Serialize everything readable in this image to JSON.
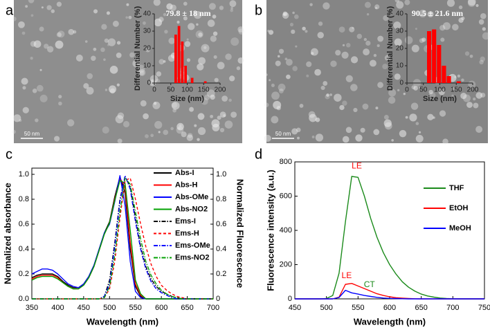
{
  "chart_data": [
    {
      "type": "histogram",
      "panel_label": "a",
      "annotation": "79.8 ± 18 nm",
      "scale_bar": "50 nm",
      "xlabel": "Size (nm)",
      "ylabel": "Differential Number (%)",
      "bins": [
        60,
        70,
        80,
        90,
        100,
        110,
        120,
        130,
        140,
        150,
        160
      ],
      "values": [
        28,
        33,
        24,
        10,
        0,
        3,
        0,
        0,
        0,
        1
      ],
      "color": "#ff0000",
      "xlim": [
        0,
        200
      ],
      "xticks": [
        0,
        50,
        100,
        150,
        200
      ],
      "ylim": [
        0,
        40
      ],
      "yticks": [
        0,
        10,
        20,
        30,
        40
      ]
    },
    {
      "type": "histogram",
      "panel_label": "b",
      "annotation": "90.5 ± 21.6 nm",
      "scale_bar": "50 nm",
      "xlabel": "Size (nm)",
      "ylabel": "Differential Number (%)",
      "bins": [
        60,
        75,
        90,
        105,
        120,
        135,
        150,
        165,
        180
      ],
      "values": [
        30,
        31,
        22,
        10,
        4,
        0,
        1,
        0
      ],
      "color": "#ff0000",
      "xlim": [
        0,
        200
      ],
      "xticks": [
        0,
        50,
        100,
        150,
        200
      ],
      "ylim": [
        0,
        40
      ],
      "yticks": [
        0,
        10,
        20,
        30,
        40
      ]
    },
    {
      "type": "line",
      "panel_label": "c",
      "xlabel": "Wavelength (nm)",
      "ylabel": "Normalized absorbance",
      "y2label": "Normalized Fluorescence",
      "x": [
        350,
        360,
        370,
        380,
        390,
        400,
        410,
        420,
        430,
        440,
        450,
        460,
        470,
        480,
        490,
        500,
        510,
        520,
        530,
        540,
        550,
        560,
        570,
        580,
        590,
        600,
        610,
        620,
        630,
        640,
        650,
        660,
        670,
        680,
        690,
        700
      ],
      "series": [
        {
          "name": "Abs-I",
          "color": "#000000",
          "line_style": "solid",
          "values": [
            0.17,
            0.19,
            0.2,
            0.2,
            0.2,
            0.18,
            0.14,
            0.11,
            0.09,
            0.09,
            0.12,
            0.18,
            0.27,
            0.4,
            0.53,
            0.62,
            0.82,
            0.98,
            0.85,
            0.4,
            0.1,
            0.02,
            0,
            0,
            0,
            0,
            0,
            0,
            0,
            0,
            0,
            0,
            0,
            0,
            0,
            0
          ]
        },
        {
          "name": "Abs-H",
          "color": "#ff0000",
          "line_style": "solid",
          "values": [
            0.16,
            0.18,
            0.19,
            0.19,
            0.19,
            0.17,
            0.13,
            0.1,
            0.08,
            0.08,
            0.11,
            0.17,
            0.26,
            0.39,
            0.52,
            0.61,
            0.8,
            0.97,
            0.9,
            0.45,
            0.12,
            0.03,
            0,
            0,
            0,
            0,
            0,
            0,
            0,
            0,
            0,
            0,
            0,
            0,
            0,
            0
          ]
        },
        {
          "name": "Abs-OMe",
          "color": "#0000ff",
          "line_style": "solid",
          "values": [
            0.2,
            0.22,
            0.24,
            0.24,
            0.23,
            0.2,
            0.16,
            0.12,
            0.1,
            0.09,
            0.12,
            0.18,
            0.27,
            0.4,
            0.53,
            0.6,
            0.78,
            0.99,
            0.75,
            0.3,
            0.06,
            0.01,
            0,
            0,
            0,
            0,
            0,
            0,
            0,
            0,
            0,
            0,
            0,
            0,
            0,
            0
          ]
        },
        {
          "name": "Abs-NO2",
          "color": "#00a000",
          "line_style": "solid",
          "values": [
            0.15,
            0.17,
            0.18,
            0.18,
            0.18,
            0.16,
            0.13,
            0.1,
            0.08,
            0.08,
            0.11,
            0.17,
            0.26,
            0.39,
            0.52,
            0.61,
            0.79,
            0.95,
            0.93,
            0.55,
            0.15,
            0.04,
            0,
            0,
            0,
            0,
            0,
            0,
            0,
            0,
            0,
            0,
            0,
            0,
            0,
            0
          ]
        },
        {
          "name": "Ems-I",
          "color": "#000000",
          "line_style": "dashdot",
          "axis": "y2",
          "values": [
            0,
            0,
            0,
            0,
            0,
            0,
            0,
            0,
            0,
            0,
            0,
            0,
            0,
            0,
            0.02,
            0.15,
            0.45,
            0.8,
            0.98,
            0.9,
            0.65,
            0.42,
            0.26,
            0.16,
            0.1,
            0.06,
            0.04,
            0.02,
            0.01,
            0,
            0,
            0,
            0,
            0,
            0,
            0
          ]
        },
        {
          "name": "Ems-H",
          "color": "#ff0000",
          "line_style": "dash",
          "axis": "y2",
          "values": [
            0,
            0,
            0,
            0,
            0,
            0,
            0,
            0,
            0,
            0,
            0,
            0,
            0,
            0,
            0.01,
            0.08,
            0.3,
            0.65,
            0.95,
            0.97,
            0.8,
            0.6,
            0.42,
            0.28,
            0.18,
            0.11,
            0.07,
            0.04,
            0.02,
            0.01,
            0,
            0,
            0,
            0,
            0,
            0
          ]
        },
        {
          "name": "Ems-OMe",
          "color": "#0000ff",
          "line_style": "dashdot",
          "axis": "y2",
          "values": [
            0,
            0,
            0,
            0,
            0,
            0,
            0,
            0,
            0,
            0,
            0,
            0,
            0,
            0,
            0.02,
            0.12,
            0.42,
            0.78,
            0.99,
            0.88,
            0.62,
            0.4,
            0.24,
            0.14,
            0.08,
            0.05,
            0.03,
            0.01,
            0,
            0,
            0,
            0,
            0,
            0,
            0,
            0
          ]
        },
        {
          "name": "Ems-NO2",
          "color": "#00a000",
          "line_style": "dashdot",
          "axis": "y2",
          "values": [
            0,
            0,
            0,
            0,
            0,
            0,
            0,
            0,
            0,
            0,
            0,
            0,
            0,
            0,
            0.01,
            0.1,
            0.35,
            0.7,
            0.97,
            0.92,
            0.7,
            0.48,
            0.3,
            0.19,
            0.12,
            0.07,
            0.04,
            0.02,
            0.01,
            0,
            0,
            0,
            0,
            0,
            0,
            0
          ]
        }
      ],
      "xlim": [
        350,
        700
      ],
      "xticks": [
        350,
        400,
        450,
        500,
        550,
        600,
        650,
        700
      ],
      "ylim": [
        0,
        1.05
      ],
      "yticks": [
        {
          "value": 0,
          "label": "0.0"
        },
        0.2,
        0.4,
        0.6,
        0.8,
        {
          "value": 1,
          "label": "1.0"
        }
      ],
      "y2lim": [
        0,
        1.05
      ],
      "y2ticks": [
        0,
        0.2,
        0.4,
        0.6,
        0.8,
        {
          "value": 1,
          "label": "1.0"
        }
      ],
      "legend": "upper right"
    },
    {
      "type": "line",
      "panel_label": "d",
      "xlabel": "Wavelength (nm)",
      "ylabel": "Fluorescence intensity (a.u.)",
      "x": [
        450,
        460,
        470,
        480,
        490,
        500,
        510,
        520,
        530,
        540,
        550,
        560,
        570,
        580,
        590,
        600,
        610,
        620,
        630,
        640,
        650,
        660,
        670,
        680,
        690,
        700,
        710,
        720,
        730,
        740,
        750
      ],
      "series": [
        {
          "name": "THF",
          "color": "#1a8a1a",
          "line_style": "solid",
          "values": [
            0,
            0,
            0,
            0,
            0,
            2,
            20,
            150,
            450,
            715,
            710,
            600,
            470,
            360,
            270,
            200,
            145,
            100,
            68,
            45,
            28,
            17,
            10,
            5,
            2,
            1,
            0,
            0,
            0,
            0,
            0
          ]
        },
        {
          "name": "EtOH",
          "color": "#ff0000",
          "line_style": "solid",
          "values": [
            0,
            0,
            0,
            0,
            0,
            0,
            0,
            10,
            85,
            90,
            75,
            60,
            45,
            30,
            20,
            12,
            7,
            4,
            2,
            1,
            0,
            0,
            0,
            0,
            0,
            0,
            0,
            0,
            0,
            0,
            0
          ]
        },
        {
          "name": "MeOH",
          "color": "#0000ff",
          "line_style": "solid",
          "values": [
            0,
            0,
            0,
            0,
            0,
            0,
            0,
            8,
            50,
            35,
            28,
            20,
            14,
            9,
            5,
            3,
            2,
            1,
            0,
            0,
            0,
            0,
            0,
            0,
            0,
            0,
            0,
            0,
            0,
            0,
            0
          ]
        }
      ],
      "annotations": [
        {
          "text": "LE",
          "color": "#ff0000"
        },
        {
          "text": "LE",
          "color": "#ff0000"
        },
        {
          "text": "CT",
          "color": "#1a8a1a"
        }
      ],
      "xlim": [
        450,
        750
      ],
      "xticks": [
        450,
        500,
        550,
        600,
        650,
        700,
        750
      ],
      "ylim": [
        0,
        800
      ],
      "yticks": [
        0,
        200,
        400,
        600,
        800
      ],
      "legend": "upper right"
    }
  ]
}
